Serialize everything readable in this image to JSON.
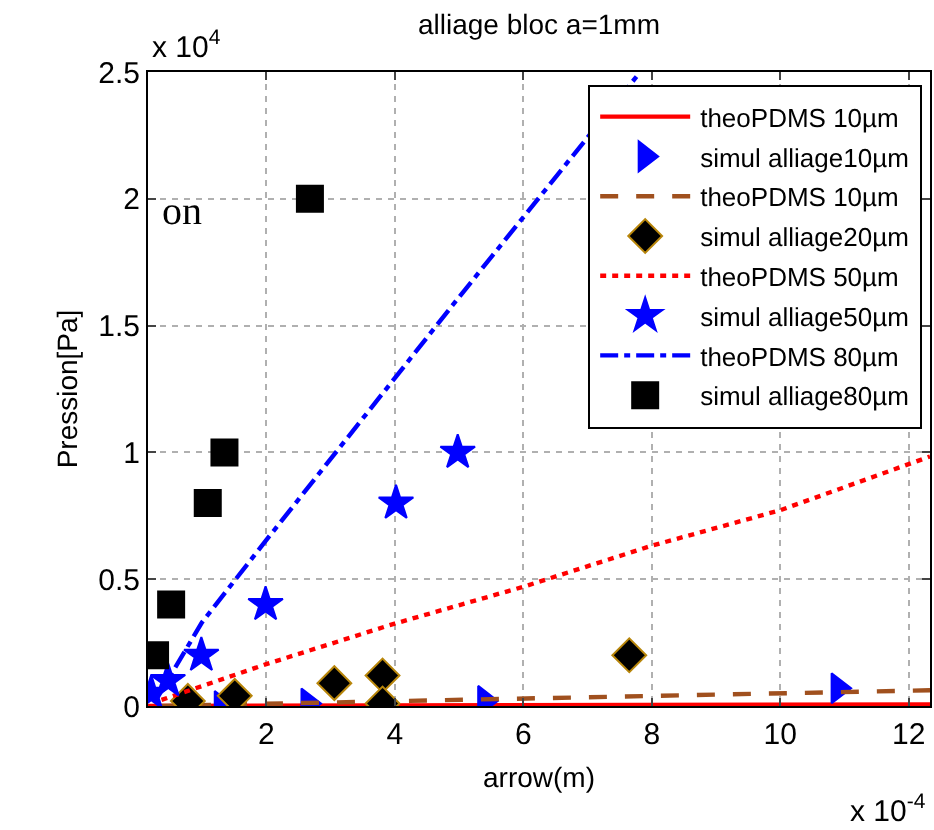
{
  "chart_data": {
    "type": "line",
    "title": "alliage bloc a=1mm",
    "xlabel": "arrow(m)",
    "ylabel": "Pression[Pa]",
    "annotations": [
      "on",
      "x 10$^{4}$",
      "x 10$^{-4}$"
    ],
    "xlim": [
      0.16,
      12.33
    ],
    "ylim": [
      0,
      2.5
    ],
    "xticks": [
      2,
      4,
      6,
      8,
      10,
      12
    ],
    "yticks": [
      0,
      0.5,
      1,
      1.5,
      2,
      2.5
    ],
    "grid": true,
    "legend": "top right",
    "series": [
      {
        "name": "theoPDMS 10µm",
        "color": "#ff0000",
        "line_style": "solid",
        "marker": "none",
        "x": [
          0.16,
          12.33
        ],
        "values": [
          0,
          0.006
        ]
      },
      {
        "name": "simul alliage10µm",
        "type": "scatter",
        "color": "#0000ff",
        "marker": "triangle",
        "x": [
          1.3,
          2.65,
          5.4,
          10.9
        ],
        "values": [
          0,
          0.01,
          0.02,
          0.07
        ]
      },
      {
        "name": "theoPDMS 10µm",
        "color": "#a0501e",
        "line_style": "dashed",
        "marker": "none",
        "x": [
          0.3,
          12.33
        ],
        "values": [
          0,
          0.062
        ]
      },
      {
        "name": "simul alliage20µm",
        "type": "scatter",
        "color": "#000000",
        "marker": "diamond",
        "x": [
          0.78,
          1.51,
          3.06,
          3.81,
          3.81,
          7.65
        ],
        "values": [
          0.02,
          0.04,
          0.09,
          0.12,
          0.01,
          0.2
        ]
      },
      {
        "name": "theoPDMS 50µm",
        "color": "#ff0000",
        "line_style": "dotted",
        "marker": "none",
        "x": [
          0.37,
          2,
          4,
          6,
          8,
          10,
          12.33
        ],
        "values": [
          0.024,
          0.165,
          0.325,
          0.47,
          0.632,
          0.772,
          0.984
        ]
      },
      {
        "name": "simul alliage50µm",
        "type": "scatter",
        "color": "#0000ff",
        "marker": "star",
        "x": [
          0.21,
          0.47,
          0.99,
          1.99,
          4.02,
          4.98
        ],
        "values": [
          0.05,
          0.1,
          0.2,
          0.4,
          0.8,
          1.0
        ]
      },
      {
        "name": "theoPDMS 80µm",
        "color": "#0000ff",
        "line_style": "dashdot",
        "marker": "none",
        "x": [
          0.3,
          1,
          2,
          5,
          7.82
        ],
        "values": [
          0.03,
          0.33,
          0.654,
          1.612,
          2.5
        ]
      },
      {
        "name": "simul alliage80µm",
        "type": "scatter",
        "color": "#000000",
        "marker": "square",
        "x": [
          0.27,
          0.52,
          1.09,
          1.35,
          2.68
        ],
        "values": [
          0.2,
          0.4,
          0.8,
          1.0,
          2.0
        ]
      }
    ]
  }
}
